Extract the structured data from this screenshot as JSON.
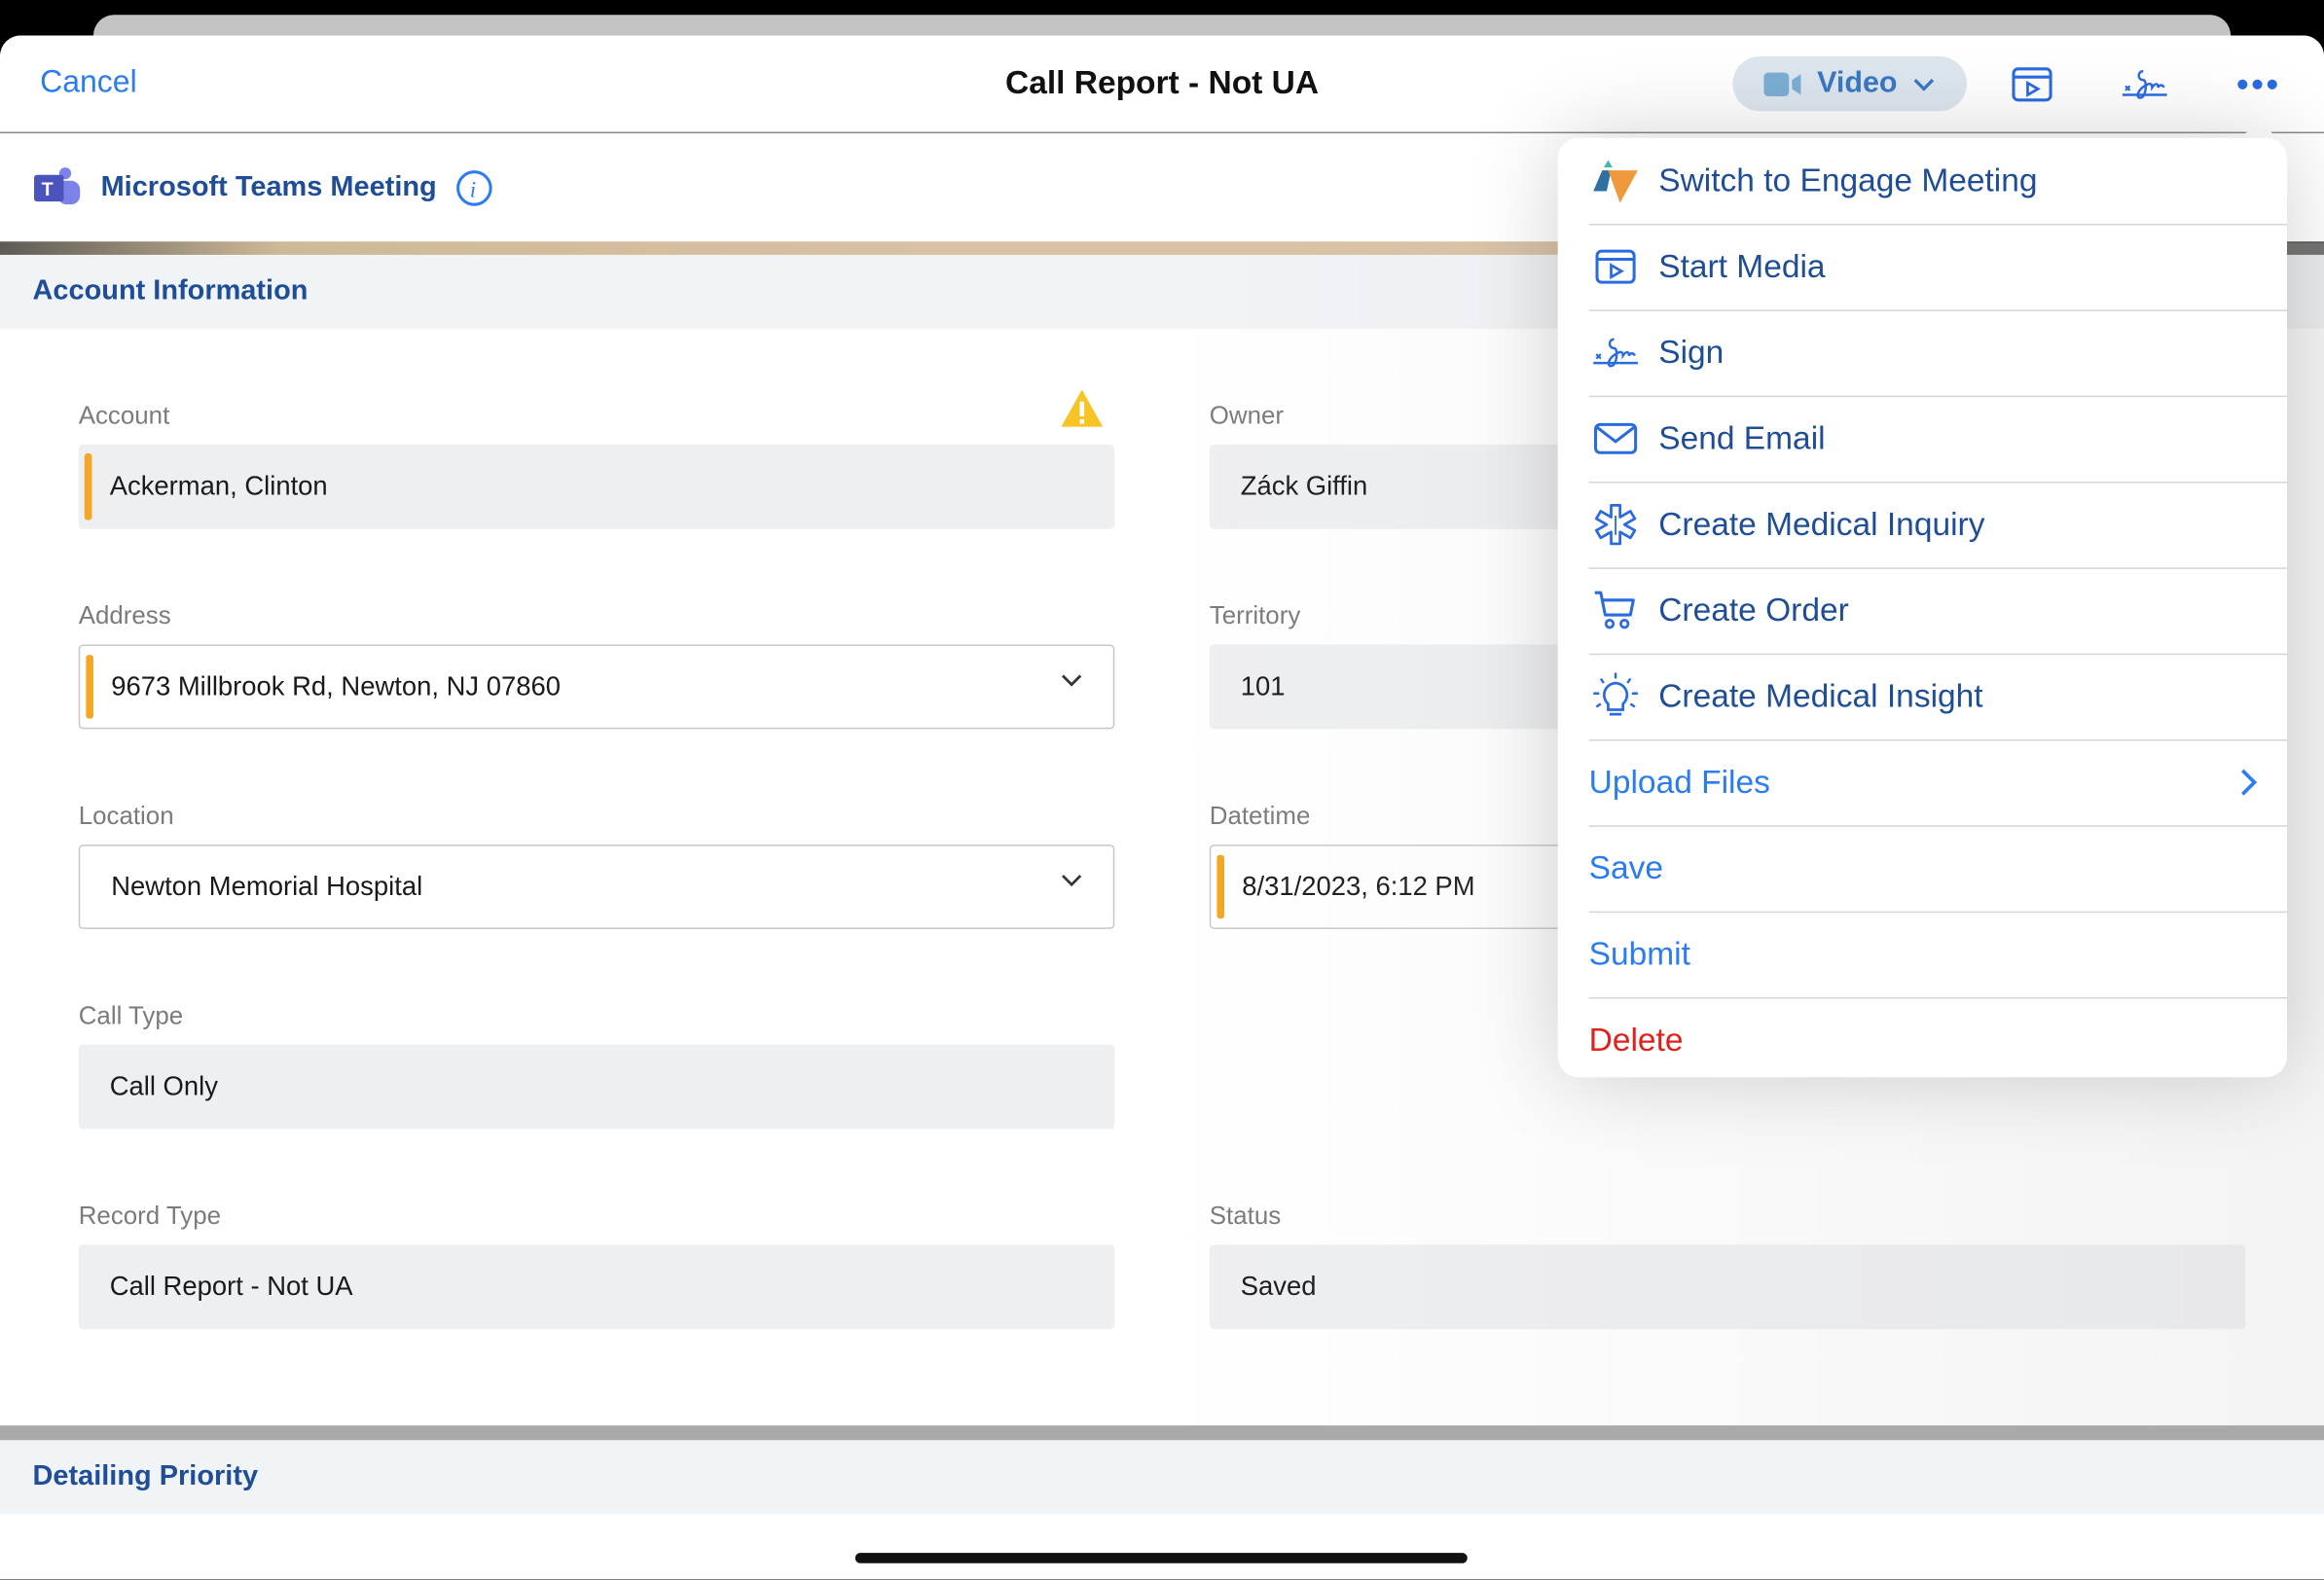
{
  "nav": {
    "cancel": "Cancel",
    "title": "Call Report - Not UA",
    "video_label": "Video"
  },
  "teams": {
    "label": "Microsoft Teams Meeting"
  },
  "sections": {
    "account_info": "Account Information",
    "detailing": "Detailing Priority"
  },
  "fields": {
    "account": {
      "label": "Account",
      "value": "Ackerman, Clinton"
    },
    "owner": {
      "label": "Owner",
      "value": "Záck Giffin"
    },
    "address": {
      "label": "Address",
      "value": "9673 Millbrook Rd, Newton, NJ 07860"
    },
    "territory": {
      "label": "Territory",
      "value": "101"
    },
    "location": {
      "label": "Location",
      "value": "Newton Memorial Hospital"
    },
    "datetime": {
      "label": "Datetime",
      "value": "8/31/2023, 6:12 PM"
    },
    "call_type": {
      "label": "Call Type",
      "value": "Call Only"
    },
    "record_type": {
      "label": "Record Type",
      "value": "Call Report - Not UA"
    },
    "status": {
      "label": "Status",
      "value": "Saved"
    }
  },
  "menu": {
    "items": [
      {
        "label": "Switch to Engage Meeting",
        "icon": "engage-icon"
      },
      {
        "label": "Start Media",
        "icon": "media-icon"
      },
      {
        "label": "Sign",
        "icon": "signature-icon"
      },
      {
        "label": "Send Email",
        "icon": "email-icon"
      },
      {
        "label": "Create Medical Inquiry",
        "icon": "medical-icon"
      },
      {
        "label": "Create Order",
        "icon": "cart-icon"
      },
      {
        "label": "Create Medical Insight",
        "icon": "lightbulb-icon"
      },
      {
        "label": "Upload Files",
        "icon": "chevron-right-icon"
      },
      {
        "label": "Save"
      },
      {
        "label": "Submit"
      },
      {
        "label": "Delete"
      }
    ]
  },
  "colors": {
    "accent": "#2a7cf0",
    "heading": "#1f4e96",
    "required": "#f5a623",
    "danger": "#e0201a"
  }
}
